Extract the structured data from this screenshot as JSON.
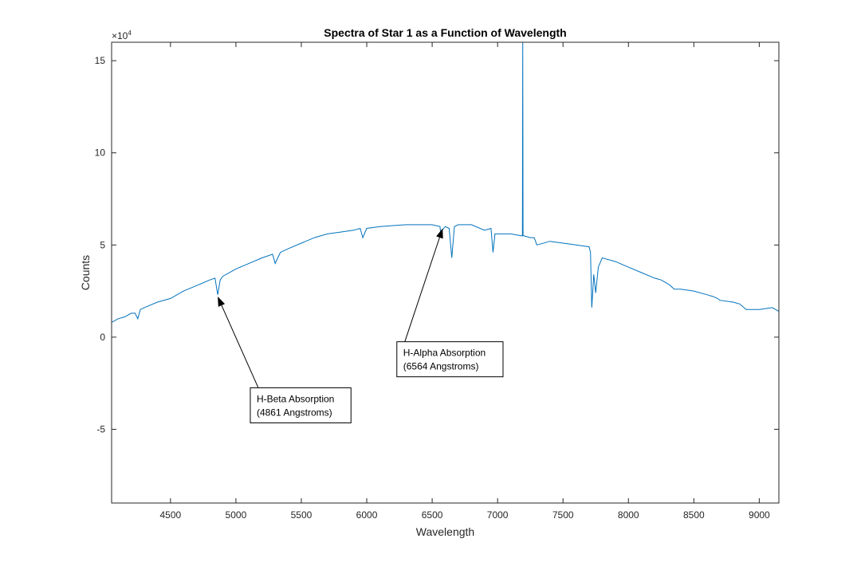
{
  "chart_data": {
    "type": "line",
    "title": "Spectra of Star 1 as a Function of Wavelength",
    "xlabel": "Wavelength",
    "ylabel": "Counts",
    "y_exponent_label": "×10",
    "y_exponent_power": "4",
    "xlim": [
      4050,
      9150
    ],
    "ylim": [
      -9,
      16
    ],
    "y_scale_factor": 10000,
    "x_ticks": [
      4500,
      5000,
      5500,
      6000,
      6500,
      7000,
      7500,
      8000,
      8500,
      9000
    ],
    "x_tick_labels": [
      "4500",
      "5000",
      "5500",
      "6000",
      "6500",
      "7000",
      "7500",
      "8000",
      "8500",
      "9000"
    ],
    "y_ticks": [
      -5,
      0,
      5,
      10,
      15
    ],
    "y_tick_labels": [
      "-5",
      "0",
      "5",
      "10",
      "15"
    ],
    "grid": false,
    "series": [
      {
        "color": "#0072BD",
        "x": [
          4050,
          4100,
          4150,
          4200,
          4230,
          4250,
          4270,
          4300,
          4400,
          4500,
          4600,
          4700,
          4800,
          4840,
          4861,
          4880,
          4900,
          5000,
          5100,
          5200,
          5280,
          5300,
          5340,
          5400,
          5500,
          5600,
          5700,
          5800,
          5900,
          5950,
          5970,
          6000,
          6100,
          6200,
          6300,
          6400,
          6500,
          6560,
          6564,
          6600,
          6630,
          6650,
          6670,
          6700,
          6800,
          6900,
          6950,
          6965,
          6980,
          7000,
          7100,
          7180,
          7190,
          7192,
          7195,
          7200,
          7250,
          7280,
          7300,
          7400,
          7500,
          7600,
          7700,
          7710,
          7720,
          7735,
          7750,
          7770,
          7800,
          7900,
          8000,
          8100,
          8200,
          8250,
          8300,
          8320,
          8350,
          8400,
          8500,
          8600,
          8650,
          8680,
          8700,
          8800,
          8850,
          8900,
          9000,
          9100,
          9150
        ],
        "y": [
          0.8,
          1.0,
          1.1,
          1.3,
          1.3,
          1.0,
          1.5,
          1.6,
          1.9,
          2.1,
          2.5,
          2.8,
          3.1,
          3.2,
          2.3,
          3.1,
          3.3,
          3.7,
          4.0,
          4.3,
          4.5,
          4.0,
          4.6,
          4.8,
          5.1,
          5.4,
          5.6,
          5.7,
          5.8,
          5.9,
          5.4,
          5.9,
          6.0,
          6.05,
          6.1,
          6.1,
          6.1,
          6.0,
          5.7,
          6.0,
          5.9,
          4.3,
          6.0,
          6.1,
          6.1,
          5.8,
          5.9,
          4.6,
          5.6,
          5.6,
          5.6,
          5.5,
          5.5,
          16,
          5.5,
          5.5,
          5.4,
          5.4,
          5.0,
          5.2,
          5.1,
          5.0,
          4.9,
          4.6,
          1.6,
          3.4,
          2.4,
          3.8,
          4.3,
          4.1,
          3.8,
          3.5,
          3.2,
          3.1,
          2.9,
          2.8,
          2.6,
          2.6,
          2.5,
          2.3,
          2.2,
          2.1,
          2.0,
          1.9,
          1.8,
          1.5,
          1.5,
          1.6,
          1.4
        ]
      }
    ],
    "annotations": [
      {
        "line1": "H-Beta Absorption",
        "line2": "(4861 Angstroms)",
        "point_x": 4861,
        "point_y": 2.2,
        "box_x": 5110,
        "box_y": -3.7
      },
      {
        "line1": "H-Alpha Absorption",
        "line2": "(6564 Angstroms)",
        "point_x": 6580,
        "point_y": 5.9,
        "box_x": 6230,
        "box_y": -1.2
      }
    ]
  }
}
